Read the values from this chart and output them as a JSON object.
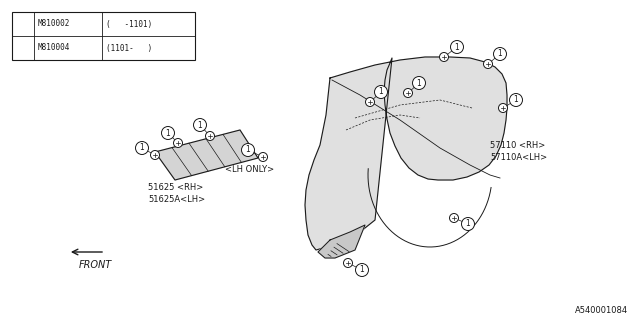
{
  "background_color": "#ffffff",
  "line_color": "#1a1a1a",
  "diagram_id": "A540001084",
  "fender_color": "#e0e0e0",
  "bracket_color": "#d0d0d0",
  "note_rows": [
    {
      "part": "M810002",
      "range": "(   -1101)"
    },
    {
      "part": "M810004",
      "range": "(1101-   )"
    }
  ],
  "label_57110_rh": "57110 <RH>",
  "label_57110_lh": "57110A<LH>",
  "label_51625_rh": "51625 <RH>",
  "label_51625_lh": "51625A<LH>",
  "label_lh_only": "<LH ONLY>",
  "front_text": "FRONT"
}
